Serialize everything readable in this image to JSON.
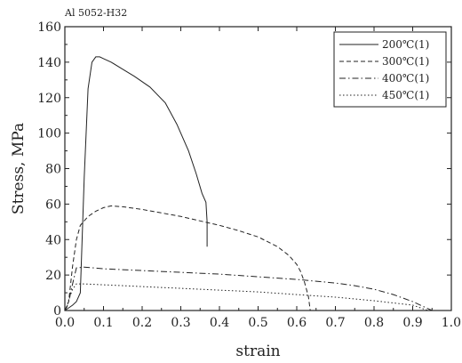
{
  "chart_data": {
    "type": "line",
    "title": "Al 5052-H32",
    "xlabel": "strain",
    "ylabel": "Stress, MPa",
    "xlim": [
      0.0,
      1.0
    ],
    "ylim": [
      0,
      160
    ],
    "x_ticks": [
      "0.0",
      "0.1",
      "0.2",
      "0.3",
      "0.4",
      "0.5",
      "0.6",
      "0.7",
      "0.8",
      "0.9",
      "1.0"
    ],
    "y_ticks": [
      "0",
      "20",
      "40",
      "60",
      "80",
      "100",
      "120",
      "140",
      "160"
    ],
    "grid": false,
    "legend_position": "top-right",
    "series": [
      {
        "name": "200℃(1)",
        "style": "solid",
        "x": [
          0.0,
          0.02,
          0.03,
          0.04,
          0.05,
          0.06,
          0.07,
          0.08,
          0.09,
          0.1,
          0.12,
          0.15,
          0.18,
          0.22,
          0.26,
          0.29,
          0.32,
          0.34,
          0.355,
          0.365,
          0.368,
          0.368
        ],
        "y": [
          0,
          3,
          5,
          10,
          75,
          125,
          140,
          143,
          143,
          142,
          140,
          136,
          132,
          126,
          117,
          105,
          90,
          77,
          66,
          61,
          50,
          36
        ]
      },
      {
        "name": "300℃(1)",
        "style": "dashed",
        "x": [
          0.0,
          0.01,
          0.02,
          0.03,
          0.04,
          0.06,
          0.08,
          0.1,
          0.12,
          0.15,
          0.2,
          0.25,
          0.3,
          0.35,
          0.4,
          0.45,
          0.5,
          0.55,
          0.58,
          0.6,
          0.61,
          0.62,
          0.63,
          0.635
        ],
        "y": [
          0,
          5,
          25,
          40,
          48,
          53,
          56,
          58,
          59,
          58.5,
          57,
          55,
          53,
          50.5,
          48,
          45,
          41.5,
          36,
          31,
          26,
          22,
          16,
          8,
          0
        ]
      },
      {
        "name": "400℃(1)",
        "style": "dash-dot",
        "x": [
          0.0,
          0.005,
          0.01,
          0.02,
          0.03,
          0.05,
          0.1,
          0.2,
          0.3,
          0.4,
          0.5,
          0.6,
          0.7,
          0.75,
          0.8,
          0.85,
          0.9,
          0.93,
          0.95
        ],
        "y": [
          0,
          2,
          5,
          15,
          24,
          24.5,
          23.5,
          22.5,
          21.5,
          20.5,
          19,
          17.5,
          15.5,
          14,
          12,
          9,
          5,
          2,
          0
        ]
      },
      {
        "name": "450℃(1)",
        "style": "dotted",
        "x": [
          0.0,
          0.005,
          0.01,
          0.02,
          0.03,
          0.05,
          0.1,
          0.2,
          0.3,
          0.4,
          0.5,
          0.6,
          0.7,
          0.8,
          0.9,
          0.94
        ],
        "y": [
          0,
          2,
          6,
          12,
          15,
          15,
          14.5,
          13.5,
          12.5,
          11.5,
          10.5,
          9,
          7.5,
          5.5,
          3,
          0
        ]
      }
    ]
  }
}
